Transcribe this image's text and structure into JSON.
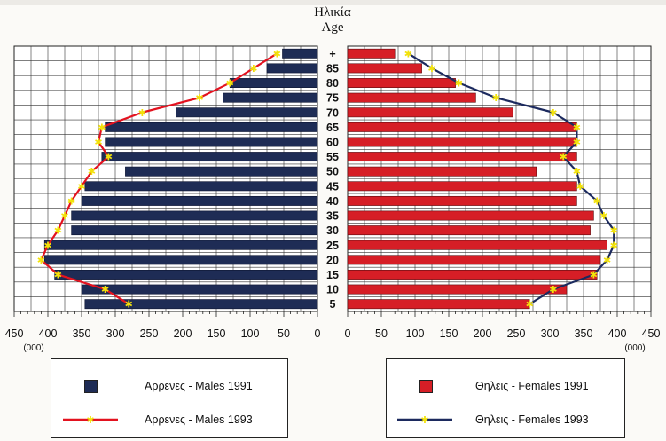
{
  "chart_data": {
    "type": "bar",
    "layout": "population-pyramid",
    "age_label_greek": "Ηλικία",
    "age_label_english": "Age",
    "categories": [
      "5",
      "10",
      "15",
      "20",
      "25",
      "30",
      "35",
      "40",
      "45",
      "50",
      "55",
      "60",
      "65",
      "70",
      "75",
      "80",
      "85",
      "+"
    ],
    "x_ticks_left": [
      450,
      400,
      350,
      300,
      250,
      200,
      150,
      100,
      50,
      0
    ],
    "x_ticks_right": [
      0,
      50,
      100,
      150,
      200,
      250,
      300,
      350,
      400,
      450
    ],
    "unit_left": "(000)",
    "unit_right": "(000)",
    "xlim": [
      0,
      450
    ],
    "grid": true,
    "series": [
      {
        "name": "Αρρενες - Males 1991",
        "side": "left",
        "kind": "bar",
        "color": "#1e2c55",
        "values": [
          345,
          350,
          390,
          405,
          405,
          365,
          365,
          350,
          345,
          285,
          320,
          315,
          315,
          210,
          140,
          130,
          75,
          52
        ]
      },
      {
        "name": "Αρρενες - Males 1993",
        "side": "left",
        "kind": "line",
        "color": "#e3121f",
        "marker_color": "#f2e20a",
        "values": [
          280,
          315,
          385,
          410,
          400,
          385,
          375,
          365,
          350,
          335,
          310,
          325,
          320,
          260,
          175,
          130,
          95,
          60
        ]
      },
      {
        "name": "Θηλεις - Females 1991",
        "side": "right",
        "kind": "bar",
        "color": "#d61e26",
        "values": [
          270,
          325,
          370,
          375,
          385,
          360,
          365,
          340,
          340,
          280,
          340,
          340,
          340,
          245,
          190,
          160,
          110,
          70
        ]
      },
      {
        "name": "Θηλεις - Females 1993",
        "side": "right",
        "kind": "line",
        "color": "#1c2a5e",
        "marker_color": "#f2e20a",
        "values": [
          270,
          305,
          365,
          385,
          395,
          395,
          380,
          370,
          345,
          340,
          320,
          340,
          340,
          305,
          220,
          165,
          125,
          90
        ]
      }
    ]
  },
  "legend": {
    "males_1991": "Αρρενες - Males 1991",
    "males_1993": "Αρρενες - Males 1993",
    "females_1991": "Θηλεις - Females 1991",
    "females_1993": "Θηλεις - Females 1993"
  }
}
